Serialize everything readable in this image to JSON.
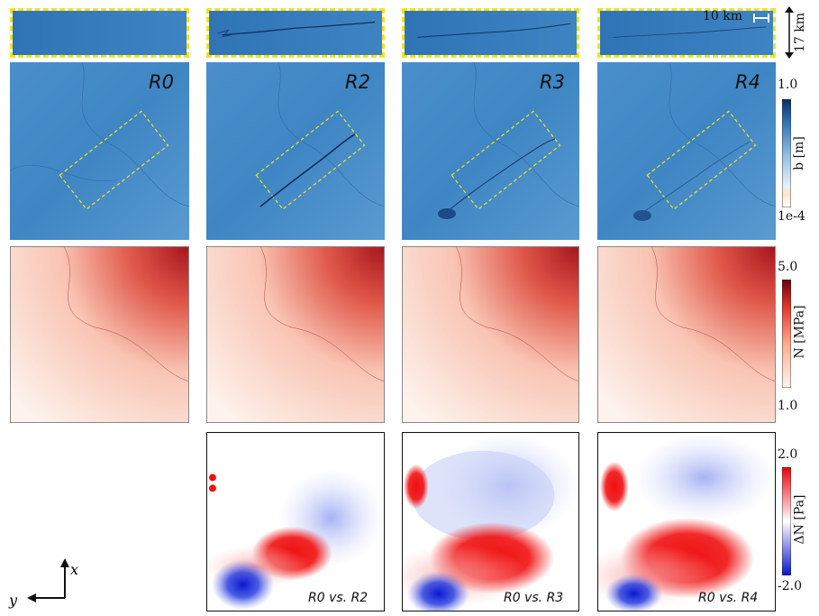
{
  "colors": {
    "blue_field": "#3f86c4",
    "blue_dark": "#1c4f8e",
    "red_high": "#a8151d",
    "red_mid": "#f08070",
    "red_low": "#fdf0ea",
    "delta_pos": "#f01818",
    "delta_neg": "#1433e0",
    "dashed_box": "#f4e21a"
  },
  "scalebar": {
    "horizontal": "10 km",
    "vertical": "17 km"
  },
  "panel_labels": [
    "R0",
    "R2",
    "R3",
    "R4"
  ],
  "comparison_labels": [
    "R0 vs. R2",
    "R0 vs. R3",
    "R0 vs. R4"
  ],
  "colorbars": {
    "b": {
      "title": "b [m]",
      "max": "1.0",
      "min": "1e-4"
    },
    "N": {
      "title": "N [MPa]",
      "max": "5.0",
      "min": "1.0"
    },
    "dN": {
      "title": "ΔN [Pa]",
      "max": "2.0",
      "min": "-2.0"
    }
  },
  "axes": {
    "x": "x",
    "y": "y"
  }
}
